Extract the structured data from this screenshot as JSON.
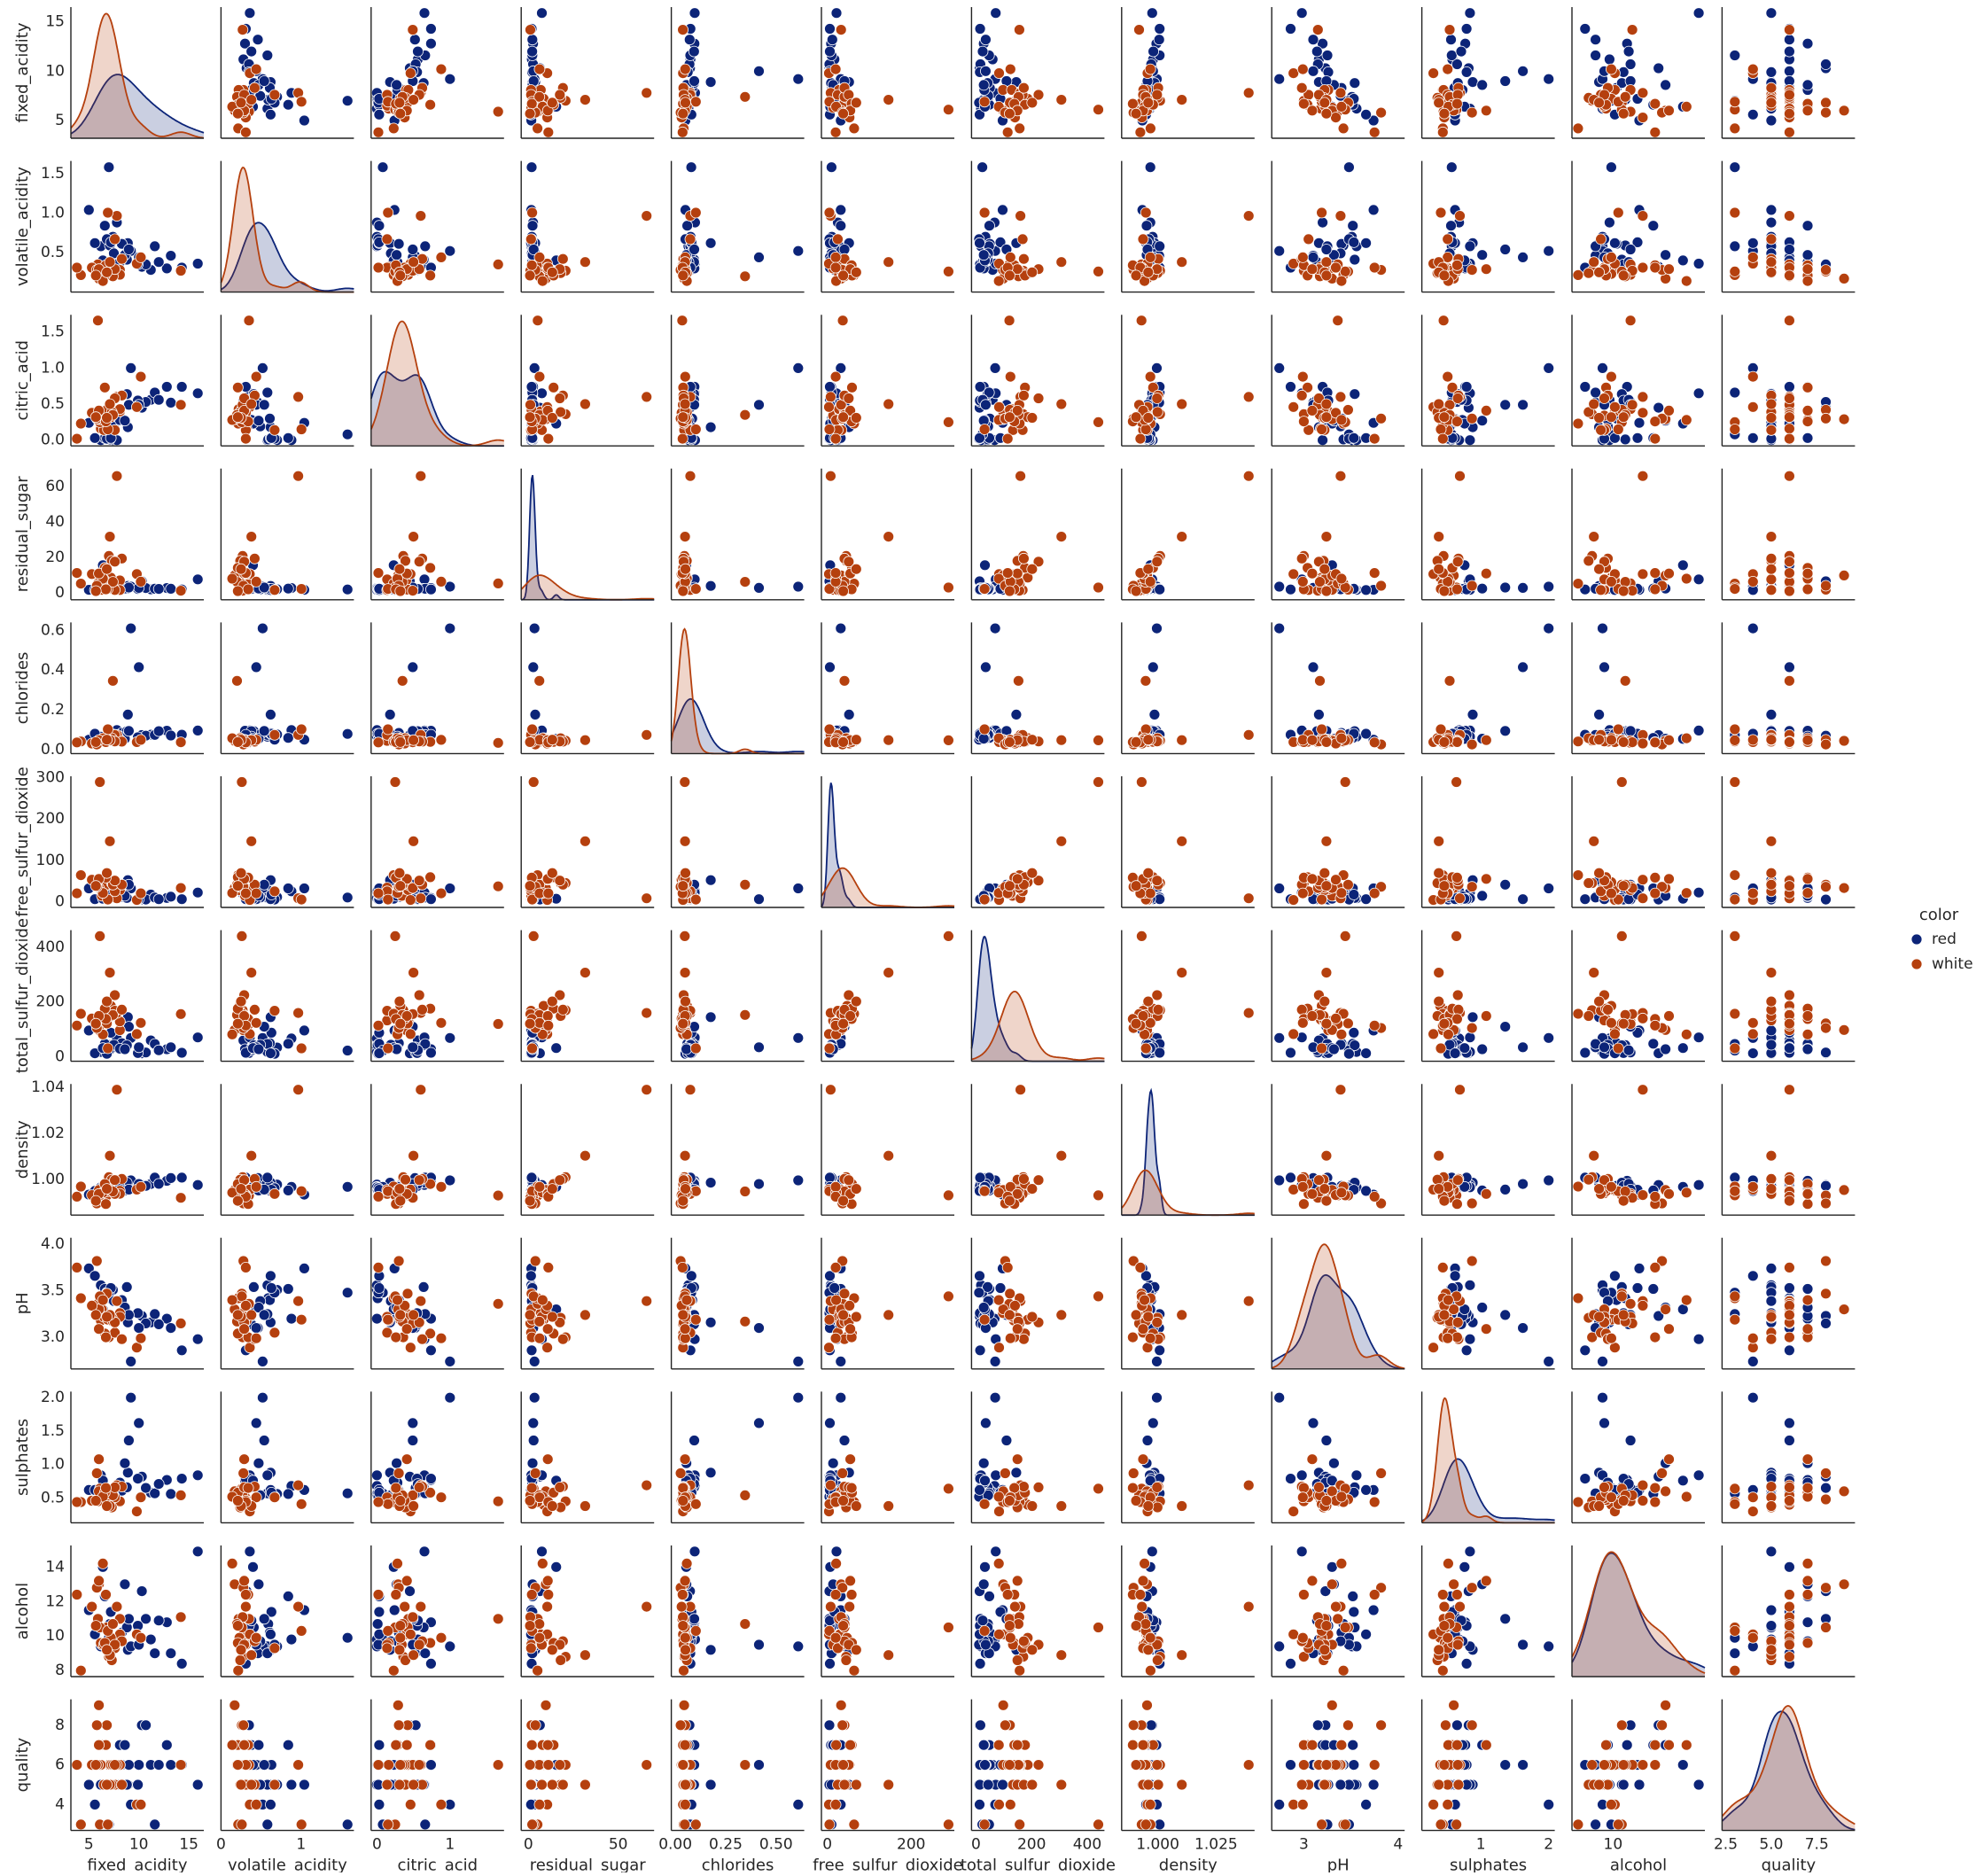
{
  "chart_data": {
    "type": "pairplot",
    "legend_title": "color",
    "legend": "right",
    "variables": [
      {
        "name": "fixed_acidity",
        "xlim": [
          3.2,
          16.5
        ],
        "ylim": [
          3.2,
          16.5
        ],
        "xticks": [
          5,
          10,
          15
        ],
        "yticks": [
          5,
          10,
          15
        ]
      },
      {
        "name": "volatile_acidity",
        "xlim": [
          0.0,
          1.66
        ],
        "ylim": [
          0.0,
          1.66
        ],
        "xticks": [
          0,
          1
        ],
        "yticks": [
          0.5,
          {
            "value": 1,
            "label": "1.0"
          },
          1.5
        ]
      },
      {
        "name": "citric_acid",
        "xlim": [
          -0.08,
          1.74
        ],
        "ylim": [
          -0.08,
          1.74
        ],
        "xticks": [
          0,
          1
        ],
        "yticks": [
          {
            "value": 0,
            "label": "0.0"
          },
          0.5,
          {
            "value": 1,
            "label": "1.0"
          },
          1.5
        ]
      },
      {
        "name": "residual_sugar",
        "xlim": [
          -4,
          70
        ],
        "ylim": [
          -4,
          70
        ],
        "xticks": [
          0,
          50
        ],
        "yticks": [
          0,
          20,
          40,
          60
        ]
      },
      {
        "name": "chlorides",
        "xlim": [
          -0.02,
          0.64
        ],
        "ylim": [
          -0.02,
          0.64
        ],
        "xticks": [
          {
            "value": 0,
            "label": "0.00"
          },
          0.25,
          {
            "value": 0.5,
            "label": "0.50"
          }
        ],
        "yticks": [
          {
            "value": 0,
            "label": "0.0"
          },
          0.2,
          0.4,
          0.6
        ]
      },
      {
        "name": "free_sulfur_dioxide",
        "xlim": [
          -14,
          303
        ],
        "ylim": [
          -14,
          303
        ],
        "xticks": [
          0,
          200
        ],
        "yticks": [
          0,
          100,
          200,
          300
        ]
      },
      {
        "name": "total_sulfur_dioxide",
        "xlim": [
          -16,
          462
        ],
        "ylim": [
          -16,
          462
        ],
        "xticks": [
          0,
          200,
          400
        ],
        "yticks": [
          0,
          200,
          400
        ]
      },
      {
        "name": "density",
        "xlim": [
          0.9845,
          1.0415
        ],
        "ylim": [
          0.9845,
          1.0415
        ],
        "xticks": [
          {
            "value": 1,
            "label": "1.000"
          },
          1.025
        ],
        "yticks": [
          {
            "value": 1,
            "label": "1.00"
          },
          1.02,
          1.04
        ]
      },
      {
        "name": "pH",
        "xlim": [
          2.66,
          4.07
        ],
        "ylim": [
          2.66,
          4.07
        ],
        "xticks": [
          3,
          4
        ],
        "yticks": [
          {
            "value": 3,
            "label": "3.0"
          },
          3.5,
          {
            "value": 4,
            "label": "4.0"
          }
        ]
      },
      {
        "name": "sulphates",
        "xlim": [
          0.13,
          2.09
        ],
        "ylim": [
          0.13,
          2.09
        ],
        "xticks": [
          1,
          2
        ],
        "yticks": [
          0.5,
          {
            "value": 1,
            "label": "1.0"
          },
          1.5,
          {
            "value": 2,
            "label": "2.0"
          }
        ]
      },
      {
        "name": "alcohol",
        "xlim": [
          7.65,
          15.25
        ],
        "ylim": [
          7.65,
          15.25
        ],
        "xticks": [
          10
        ],
        "yticks": [
          8,
          10,
          12,
          14
        ]
      },
      {
        "name": "quality",
        "xlim": [
          2.3,
          9.6
        ],
        "ylim": [
          2.7,
          9.3
        ],
        "xticks": [
          2.5,
          {
            "value": 5,
            "label": "5.0"
          },
          7.5
        ],
        "yticks": [
          4,
          6,
          8
        ]
      }
    ],
    "series": [
      {
        "name": "red",
        "color": "#0c2478",
        "values": [
          [
            7.4,
            0.7,
            0.0,
            1.9,
            0.076,
            11,
            34,
            0.9978,
            3.51,
            0.56,
            9.4,
            5
          ],
          [
            7.8,
            0.88,
            0.0,
            2.6,
            0.098,
            25,
            67,
            0.9968,
            3.2,
            0.68,
            9.8,
            5
          ],
          [
            11.2,
            0.28,
            0.56,
            1.9,
            0.075,
            17,
            60,
            0.998,
            3.16,
            0.58,
            9.8,
            6
          ],
          [
            8.9,
            0.62,
            0.18,
            3.8,
            0.176,
            52,
            145,
            0.9986,
            3.16,
            0.88,
            9.2,
            5
          ],
          [
            10.3,
            0.32,
            0.45,
            6.4,
            0.073,
            5,
            13,
            0.9976,
            3.23,
            0.82,
            12.6,
            8
          ],
          [
            15.9,
            0.36,
            0.65,
            7.5,
            0.096,
            22,
            71,
            0.9976,
            2.98,
            0.84,
            14.9,
            5
          ],
          [
            6.2,
            0.58,
            0.0,
            1.6,
            0.065,
            8,
            18,
            0.9966,
            3.56,
            0.84,
            9.4,
            5
          ],
          [
            12.8,
            0.3,
            0.74,
            2.6,
            0.095,
            9,
            28,
            0.9994,
            3.2,
            0.77,
            10.8,
            7
          ],
          [
            7.1,
            0.59,
            0.01,
            2.3,
            0.08,
            27,
            43,
            0.9955,
            3.42,
            0.58,
            10.7,
            6
          ],
          [
            9.2,
            0.52,
            1.0,
            3.4,
            0.61,
            32,
            69,
            0.9996,
            2.74,
            2.0,
            9.4,
            4
          ],
          [
            5.0,
            1.04,
            0.24,
            1.6,
            0.05,
            32,
            96,
            0.9934,
            3.74,
            0.62,
            11.5,
            5
          ],
          [
            8.3,
            0.61,
            0.3,
            2.1,
            0.084,
            11,
            50,
            0.9972,
            3.4,
            0.61,
            10.2,
            6
          ],
          [
            10.7,
            0.35,
            0.53,
            2.6,
            0.07,
            5,
            16,
            0.9972,
            3.15,
            0.65,
            11.0,
            8
          ],
          [
            6.6,
            0.84,
            0.03,
            2.3,
            0.059,
            32,
            48,
            0.9952,
            3.52,
            0.56,
            12.3,
            7
          ],
          [
            13.2,
            0.46,
            0.52,
            2.2,
            0.071,
            12,
            35,
            1.0006,
            3.1,
            0.56,
            9.0,
            6
          ],
          [
            7.0,
            1.58,
            0.08,
            1.8,
            0.079,
            10,
            23,
            0.9968,
            3.48,
            0.57,
            9.9,
            3
          ],
          [
            8.8,
            0.41,
            0.64,
            2.2,
            0.093,
            9,
            42,
            0.9986,
            3.54,
            0.66,
            10.5,
            5
          ],
          [
            11.6,
            0.58,
            0.66,
            2.2,
            0.074,
            10,
            47,
            1.0008,
            3.25,
            0.57,
            9.0,
            3
          ],
          [
            6.8,
            0.67,
            0.02,
            1.8,
            0.05,
            5,
            11,
            0.9962,
            3.48,
            0.52,
            9.5,
            5
          ],
          [
            9.9,
            0.35,
            0.55,
            2.1,
            0.062,
            5,
            14,
            0.9971,
            3.26,
            0.79,
            10.6,
            5
          ],
          [
            7.5,
            0.49,
            0.19,
            1.9,
            0.076,
            10,
            44,
            0.9957,
            3.39,
            0.54,
            9.7,
            5
          ],
          [
            12.0,
            0.38,
            0.56,
            2.1,
            0.093,
            6,
            24,
            0.9981,
            3.14,
            0.71,
            10.9,
            6
          ],
          [
            8.1,
            0.38,
            0.28,
            2.1,
            0.066,
            13,
            30,
            0.9968,
            3.23,
            0.73,
            9.7,
            7
          ],
          [
            5.6,
            0.62,
            0.03,
            1.5,
            0.08,
            6,
            13,
            0.995,
            3.66,
            0.62,
            10.1,
            4
          ],
          [
            10.0,
            0.44,
            0.49,
            2.7,
            0.415,
            6,
            35,
            0.998,
            3.1,
            1.62,
            9.5,
            6
          ],
          [
            7.2,
            0.63,
            0.03,
            2.2,
            0.08,
            17,
            88,
            0.9955,
            3.53,
            0.58,
            11.4,
            6
          ],
          [
            14.3,
            0.31,
            0.74,
            1.8,
            0.075,
            6,
            15,
            1.0008,
            2.86,
            0.79,
            8.4,
            6
          ],
          [
            6.4,
            0.4,
            0.23,
            15.5,
            0.054,
            7,
            32,
            0.9968,
            3.3,
            0.76,
            14.0,
            6
          ],
          [
            8.6,
            0.47,
            0.27,
            2.3,
            0.055,
            14,
            28,
            0.9952,
            3.32,
            1.02,
            13.0,
            7
          ],
          [
            9.0,
            0.54,
            0.49,
            2.9,
            0.094,
            41,
            110,
            0.9956,
            3.24,
            1.36,
            11.0,
            6
          ]
        ]
      },
      {
        "name": "white",
        "color": "#b5400e",
        "values": [
          [
            7.0,
            0.27,
            0.36,
            20.7,
            0.045,
            45,
            170,
            1.001,
            3.0,
            0.45,
            8.8,
            6
          ],
          [
            6.3,
            0.3,
            0.34,
            1.6,
            0.049,
            14,
            132,
            0.994,
            3.3,
            0.49,
            9.5,
            6
          ],
          [
            8.1,
            0.28,
            0.4,
            6.9,
            0.05,
            30,
            97,
            0.9951,
            3.26,
            0.44,
            10.1,
            6
          ],
          [
            7.2,
            0.23,
            0.32,
            8.5,
            0.058,
            47,
            186,
            0.9956,
            3.19,
            0.4,
            9.9,
            6
          ],
          [
            6.2,
            0.32,
            0.16,
            7.0,
            0.045,
            30,
            136,
            0.9949,
            3.18,
            0.47,
            9.6,
            6
          ],
          [
            8.1,
            0.22,
            0.43,
            1.5,
            0.044,
            28,
            129,
            0.9938,
            3.22,
            0.45,
            11.0,
            6
          ],
          [
            6.5,
            0.31,
            0.14,
            7.5,
            0.044,
            34,
            133,
            0.9955,
            3.22,
            0.5,
            9.5,
            5
          ],
          [
            7.8,
            0.965,
            0.6,
            65.8,
            0.074,
            8,
            160,
            1.039,
            3.39,
            0.69,
            11.7,
            6
          ],
          [
            5.9,
            0.35,
            1.66,
            5.2,
            0.034,
            37,
            120,
            0.993,
            3.36,
            0.45,
            11.0,
            6
          ],
          [
            6.8,
            0.26,
            0.42,
            1.7,
            0.049,
            41,
            122,
            0.993,
            3.47,
            0.48,
            10.5,
            8
          ],
          [
            7.6,
            0.67,
            0.14,
            1.5,
            0.074,
            25,
            168,
            0.9937,
            3.05,
            0.51,
            9.3,
            5
          ],
          [
            4.2,
            0.215,
            0.23,
            5.1,
            0.041,
            64,
            157,
            0.9969,
            3.42,
            0.44,
            8.0,
            3
          ],
          [
            9.8,
            0.36,
            0.46,
            10.5,
            0.038,
            4,
            83,
            0.9956,
            2.89,
            0.3,
            10.1,
            4
          ],
          [
            6.1,
            0.26,
            0.25,
            2.9,
            0.047,
            289,
            440,
            0.9931,
            3.44,
            0.64,
            10.5,
            3
          ],
          [
            7.3,
            0.24,
            0.39,
            17.95,
            0.057,
            45,
            149,
            0.9999,
            3.21,
            0.36,
            8.6,
            5
          ],
          [
            6.0,
            0.17,
            0.29,
            9.7,
            0.044,
            33,
            98,
            0.9954,
            3.3,
            0.6,
            13.0,
            9
          ],
          [
            14.2,
            0.27,
            0.49,
            1.1,
            0.037,
            33,
            156,
            0.992,
            3.15,
            0.54,
            11.1,
            6
          ],
          [
            5.3,
            0.31,
            0.38,
            10.5,
            0.031,
            53,
            140,
            0.9932,
            3.34,
            0.46,
            11.7,
            6
          ],
          [
            6.9,
            1.005,
            0.15,
            2.1,
            0.102,
            5,
            31,
            0.9949,
            3.19,
            0.41,
            10.3,
            3
          ],
          [
            7.4,
            0.2,
            0.35,
            6.1,
            0.346,
            41,
            153,
            0.9948,
            3.17,
            0.54,
            10.7,
            6
          ],
          [
            6.6,
            0.21,
            0.73,
            14.0,
            0.039,
            59,
            176,
            0.998,
            3.04,
            0.58,
            9.6,
            7
          ],
          [
            8.3,
            0.42,
            0.62,
            19.25,
            0.04,
            41,
            172,
            1.0002,
            2.98,
            0.67,
            9.7,
            5
          ],
          [
            6.4,
            0.14,
            0.28,
            7.9,
            0.057,
            21,
            82,
            0.9943,
            3.4,
            0.52,
            14.2,
            7
          ],
          [
            7.6,
            0.29,
            0.58,
            17.5,
            0.041,
            51,
            225,
            0.9997,
            3.16,
            0.66,
            9.5,
            6
          ],
          [
            5.8,
            0.28,
            0.3,
            3.9,
            0.026,
            36,
            105,
            0.9896,
            3.82,
            0.87,
            12.8,
            8
          ],
          [
            6.7,
            0.34,
            0.26,
            1.9,
            0.038,
            58,
            138,
            0.9893,
            3.0,
            0.65,
            12.4,
            7
          ],
          [
            10.2,
            0.44,
            0.88,
            6.2,
            0.049,
            20,
            124,
            0.9968,
            2.99,
            0.51,
            9.9,
            4
          ],
          [
            6.0,
            0.29,
            0.41,
            10.8,
            0.048,
            55,
            149,
            0.9937,
            3.09,
            1.08,
            13.2,
            7
          ],
          [
            7.1,
            0.38,
            0.5,
            31.6,
            0.048,
            146,
            307,
            1.0103,
            3.24,
            0.38,
            8.9,
            5
          ],
          [
            3.8,
            0.31,
            0.02,
            11.1,
            0.036,
            20,
            114,
            0.9925,
            3.75,
            0.44,
            12.4,
            6
          ],
          [
            6.8,
            0.25,
            0.31,
            13.3,
            0.05,
            69,
            202,
            0.9959,
            3.22,
            0.38,
            9.2,
            5
          ],
          [
            5.7,
            0.21,
            0.32,
            0.9,
            0.038,
            38,
            121,
            0.9907,
            3.24,
            0.46,
            10.6,
            6
          ]
        ]
      }
    ]
  }
}
